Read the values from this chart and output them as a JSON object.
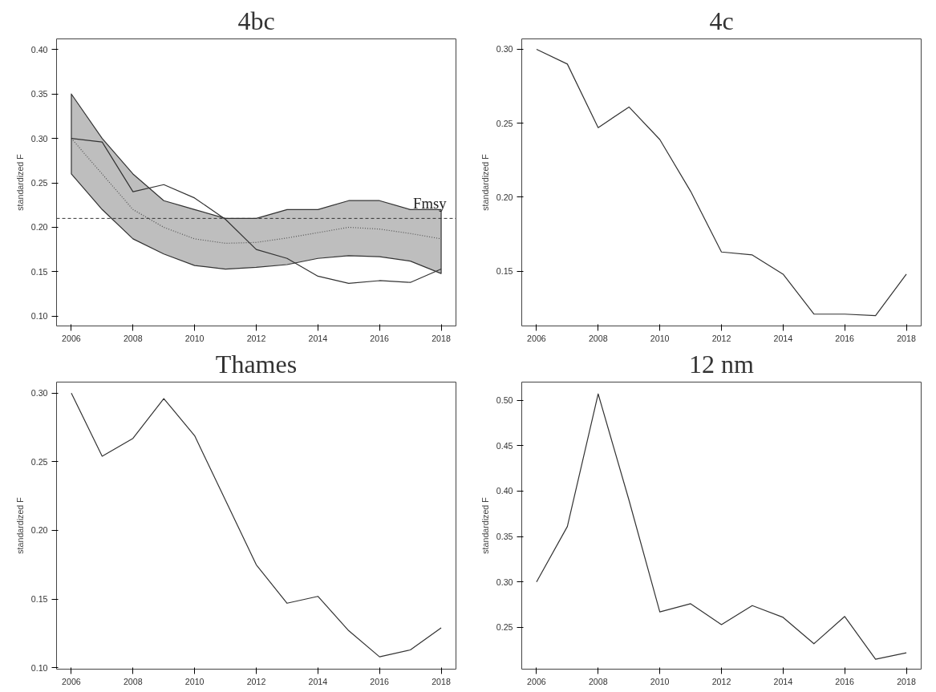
{
  "chart_data": [
    {
      "type": "line",
      "title": "4bc",
      "ylabel": "standardized F",
      "x": [
        2006,
        2007,
        2008,
        2009,
        2010,
        2011,
        2012,
        2013,
        2014,
        2015,
        2016,
        2017,
        2018
      ],
      "xlim": [
        2005.52,
        2018.48
      ],
      "xticks": [
        2006,
        2008,
        2010,
        2012,
        2014,
        2016,
        2018
      ],
      "ylim": [
        0.089,
        0.412
      ],
      "yticks": [
        {
          "value": 0.1,
          "label": "0.10"
        },
        0.15,
        {
          "value": 0.2,
          "label": "0.20"
        },
        0.25,
        {
          "value": 0.3,
          "label": "0.30"
        },
        0.35,
        {
          "value": 0.4,
          "label": "0.40"
        }
      ],
      "grid": false,
      "series": [
        {
          "color": "#555555",
          "line_style": "dotted",
          "values": [
            0.3,
            0.26,
            0.22,
            0.2,
            0.187,
            0.182,
            0.183,
            0.188,
            0.194,
            0.2,
            0.198,
            0.193,
            0.187
          ],
          "lower": [
            0.26,
            0.22,
            0.187,
            0.17,
            0.157,
            0.153,
            0.155,
            0.158,
            0.165,
            0.168,
            0.167,
            0.162,
            0.148
          ],
          "upper": [
            0.35,
            0.3,
            0.26,
            0.23,
            0.22,
            0.21,
            0.21,
            0.22,
            0.22,
            0.23,
            0.23,
            0.22,
            0.22
          ]
        },
        {
          "color": "#333333",
          "line_style": "solid",
          "values": [
            0.3,
            0.296,
            0.24,
            0.248,
            0.233,
            0.209,
            0.175,
            0.165,
            0.145,
            0.137,
            0.14,
            0.138,
            0.153
          ]
        }
      ],
      "ref_lines": [
        {
          "axis": "y",
          "value": 0.21,
          "label": "Fmsy",
          "color": "#333333",
          "line_style": "dashed"
        }
      ]
    },
    {
      "type": "line",
      "title": "4c",
      "ylabel": "standardized F",
      "x": [
        2006,
        2007,
        2008,
        2009,
        2010,
        2011,
        2012,
        2013,
        2014,
        2015,
        2016,
        2017,
        2018
      ],
      "xlim": [
        2005.52,
        2018.48
      ],
      "xticks": [
        2006,
        2008,
        2010,
        2012,
        2014,
        2016,
        2018
      ],
      "ylim": [
        0.113,
        0.307
      ],
      "yticks": [
        0.15,
        {
          "value": 0.2,
          "label": "0.20"
        },
        0.25,
        {
          "value": 0.3,
          "label": "0.30"
        }
      ],
      "grid": false,
      "series": [
        {
          "color": "#333333",
          "line_style": "solid",
          "values": [
            0.3,
            0.29,
            0.247,
            0.261,
            0.239,
            0.204,
            0.163,
            0.161,
            0.148,
            0.121,
            0.121,
            0.12,
            0.148
          ]
        }
      ]
    },
    {
      "type": "line",
      "title": "Thames",
      "ylabel": "standardized F",
      "x": [
        2006,
        2007,
        2008,
        2009,
        2010,
        2011,
        2012,
        2013,
        2014,
        2015,
        2016,
        2017,
        2018
      ],
      "xlim": [
        2005.52,
        2018.48
      ],
      "xticks": [
        2006,
        2008,
        2010,
        2012,
        2014,
        2016,
        2018
      ],
      "ylim": [
        0.099,
        0.308
      ],
      "yticks": [
        {
          "value": 0.1,
          "label": "0.10"
        },
        0.15,
        {
          "value": 0.2,
          "label": "0.20"
        },
        0.25,
        {
          "value": 0.3,
          "label": "0.30"
        }
      ],
      "grid": false,
      "series": [
        {
          "color": "#333333",
          "line_style": "solid",
          "values": [
            0.3,
            0.254,
            0.267,
            0.296,
            0.269,
            0.222,
            0.175,
            0.147,
            0.152,
            0.127,
            0.108,
            0.113,
            0.129
          ]
        }
      ]
    },
    {
      "type": "line",
      "title": "12 nm",
      "ylabel": "standardized F",
      "x": [
        2006,
        2007,
        2008,
        2009,
        2010,
        2011,
        2012,
        2013,
        2014,
        2015,
        2016,
        2017,
        2018
      ],
      "xlim": [
        2005.52,
        2018.48
      ],
      "xticks": [
        2006,
        2008,
        2010,
        2012,
        2014,
        2016,
        2018
      ],
      "ylim": [
        0.204,
        0.52
      ],
      "yticks": [
        0.25,
        {
          "value": 0.3,
          "label": "0.30"
        },
        0.35,
        {
          "value": 0.4,
          "label": "0.40"
        },
        0.45,
        {
          "value": 0.5,
          "label": "0.50"
        }
      ],
      "grid": false,
      "series": [
        {
          "color": "#333333",
          "line_style": "solid",
          "values": [
            0.3,
            0.361,
            0.507,
            0.39,
            0.267,
            0.276,
            0.253,
            0.274,
            0.261,
            0.232,
            0.262,
            0.215,
            0.222
          ]
        }
      ]
    }
  ]
}
